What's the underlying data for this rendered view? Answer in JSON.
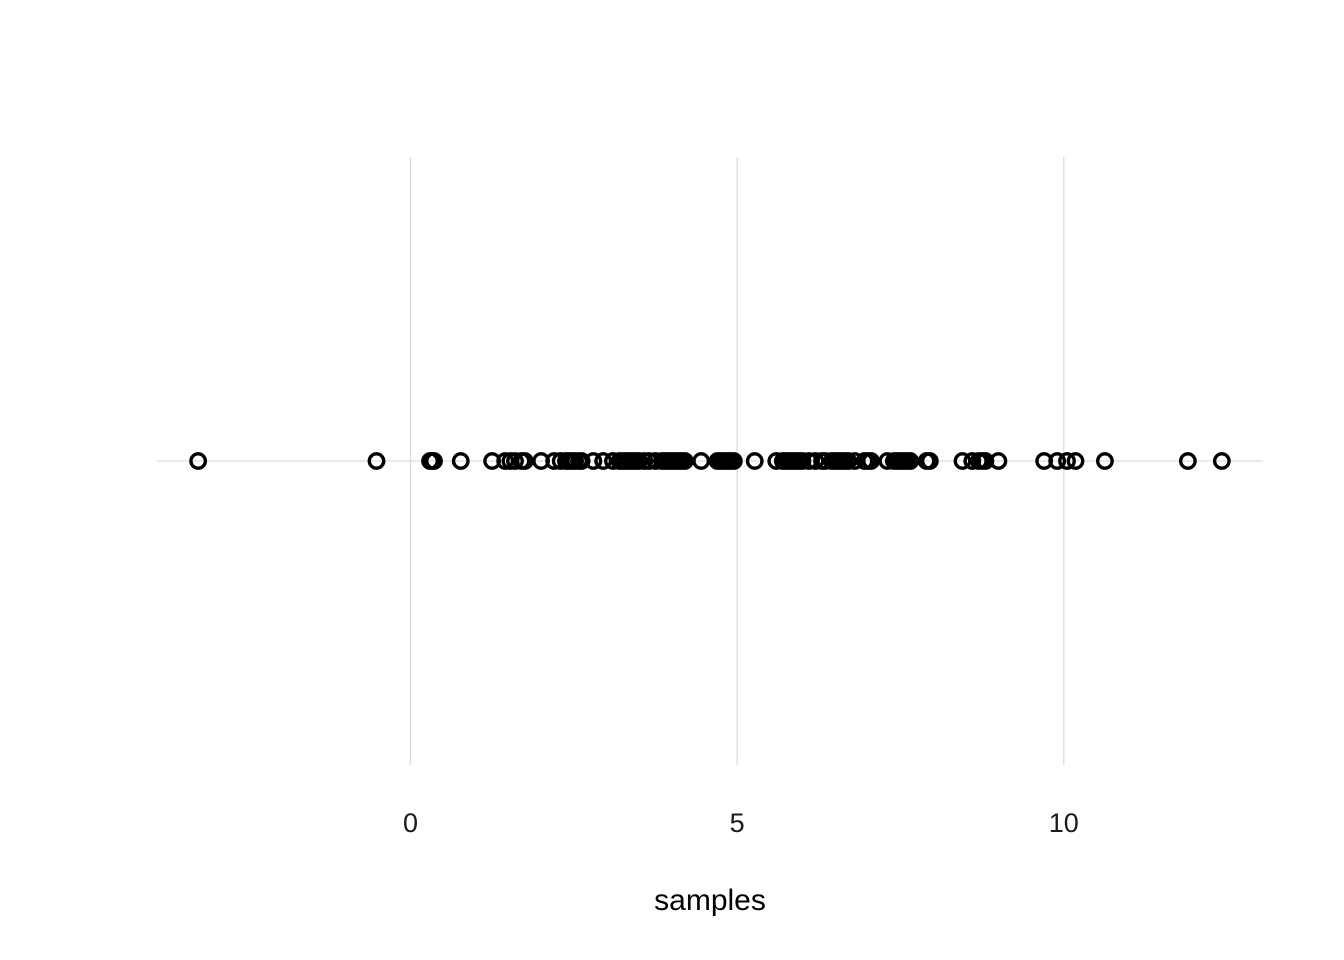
{
  "chart_data": {
    "type": "scatter",
    "title": "",
    "xlabel": "samples",
    "ylabel": "",
    "xlim": [
      -3.88,
      13.05
    ],
    "x_ticks": [
      0,
      5,
      10
    ],
    "x_tick_labels": [
      "0",
      "5",
      "10"
    ],
    "grid": true,
    "legend": "none",
    "point_color": "#000000",
    "grid_color": "#dcdcdc",
    "series": [
      {
        "values": [
          -3.25,
          -0.52,
          0.3,
          0.33,
          0.36,
          0.77,
          1.25,
          1.45,
          1.53,
          1.6,
          1.7,
          1.75,
          2.0,
          2.2,
          2.3,
          2.38,
          2.42,
          2.47,
          2.52,
          2.58,
          2.62,
          2.8,
          2.95,
          3.1,
          3.2,
          3.25,
          3.3,
          3.35,
          3.4,
          3.45,
          3.5,
          3.58,
          3.65,
          3.75,
          3.85,
          3.9,
          3.95,
          4.0,
          4.05,
          4.1,
          4.15,
          4.2,
          4.45,
          4.7,
          4.75,
          4.8,
          4.85,
          4.9,
          4.95,
          5.27,
          5.6,
          5.7,
          5.75,
          5.8,
          5.85,
          5.9,
          5.95,
          6.0,
          6.1,
          6.2,
          6.3,
          6.35,
          6.45,
          6.5,
          6.55,
          6.6,
          6.65,
          6.7,
          6.8,
          6.95,
          7.0,
          7.05,
          7.3,
          7.4,
          7.45,
          7.5,
          7.55,
          7.6,
          7.65,
          7.9,
          7.95,
          8.45,
          8.6,
          8.7,
          8.75,
          8.8,
          9.0,
          9.7,
          9.9,
          10.05,
          10.18,
          10.63,
          11.9,
          12.42
        ]
      }
    ]
  }
}
